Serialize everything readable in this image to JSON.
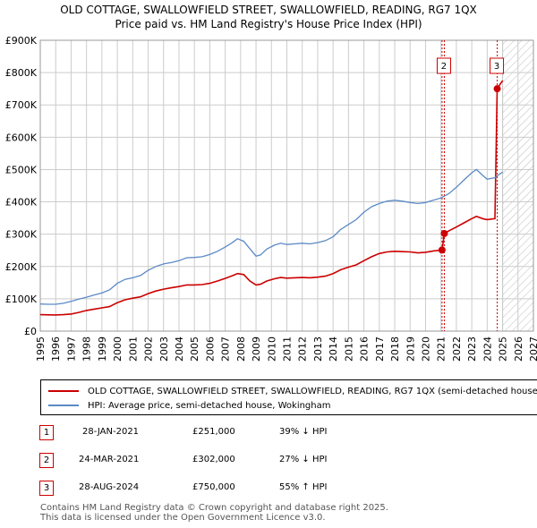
{
  "title_line1": "OLD COTTAGE, SWALLOWFIELD STREET, SWALLOWFIELD, READING, RG7 1QX",
  "title_line2": "Price paid vs. HM Land Registry's House Price Index (HPI)",
  "colors": {
    "property": "#cc0000",
    "hpi": "#5b8ac6",
    "grid": "#cccccc",
    "future_shade": "#dddddd",
    "annotation": "#cc0000"
  },
  "chart_data": {
    "type": "line",
    "title": "OLD COTTAGE, SWALLOWFIELD STREET, SWALLOWFIELD, READING, RG7 1QX",
    "subtitle": "Price paid vs. HM Land Registry's House Price Index (HPI)",
    "xlabel": "",
    "ylabel": "",
    "xlim": [
      1995,
      2027
    ],
    "ylim": [
      0,
      900000
    ],
    "x_ticks": [
      "1995",
      "1996",
      "1997",
      "1998",
      "1999",
      "2000",
      "2001",
      "2002",
      "2003",
      "2004",
      "2005",
      "2006",
      "2007",
      "2008",
      "2009",
      "2010",
      "2011",
      "2012",
      "2013",
      "2014",
      "2015",
      "2016",
      "2017",
      "2018",
      "2019",
      "2020",
      "2021",
      "2022",
      "2023",
      "2024",
      "2025",
      "2026",
      "2027"
    ],
    "y_ticks": [
      {
        "value": 0,
        "label": "£0"
      },
      {
        "value": 100000,
        "label": "£100K"
      },
      {
        "value": 200000,
        "label": "£200K"
      },
      {
        "value": 300000,
        "label": "£300K"
      },
      {
        "value": 400000,
        "label": "£400K"
      },
      {
        "value": 500000,
        "label": "£500K"
      },
      {
        "value": 600000,
        "label": "£600K"
      },
      {
        "value": 700000,
        "label": "£700K"
      },
      {
        "value": 800000,
        "label": "£800K"
      },
      {
        "value": 900000,
        "label": "£900K"
      }
    ],
    "grid": true,
    "future_shaded_from": 2025.0,
    "series": [
      {
        "name": "OLD COTTAGE, SWALLOWFIELD STREET, SWALLOWFIELD, READING, RG7 1QX (semi-detached house)",
        "role": "property",
        "points": [
          [
            1995.0,
            51000
          ],
          [
            1995.5,
            50500
          ],
          [
            1996.0,
            50000
          ],
          [
            1996.5,
            51000
          ],
          [
            1997.0,
            53000
          ],
          [
            1997.5,
            58000
          ],
          [
            1998.0,
            64000
          ],
          [
            1998.5,
            68000
          ],
          [
            1999.0,
            72000
          ],
          [
            1999.5,
            76000
          ],
          [
            2000.0,
            88000
          ],
          [
            2000.5,
            97000
          ],
          [
            2001.0,
            102000
          ],
          [
            2001.5,
            106000
          ],
          [
            2002.0,
            116000
          ],
          [
            2002.5,
            124000
          ],
          [
            2003.0,
            130000
          ],
          [
            2003.5,
            134000
          ],
          [
            2004.0,
            138000
          ],
          [
            2004.5,
            143000
          ],
          [
            2005.0,
            143000
          ],
          [
            2005.5,
            144000
          ],
          [
            2006.0,
            148000
          ],
          [
            2006.5,
            155000
          ],
          [
            2007.0,
            163000
          ],
          [
            2007.5,
            172000
          ],
          [
            2007.8,
            178000
          ],
          [
            2008.2,
            175000
          ],
          [
            2008.6,
            155000
          ],
          [
            2009.0,
            143000
          ],
          [
            2009.3,
            145000
          ],
          [
            2009.7,
            155000
          ],
          [
            2010.2,
            162000
          ],
          [
            2010.6,
            166000
          ],
          [
            2011.0,
            164000
          ],
          [
            2011.5,
            165000
          ],
          [
            2012.0,
            166000
          ],
          [
            2012.5,
            165000
          ],
          [
            2013.0,
            167000
          ],
          [
            2013.5,
            170000
          ],
          [
            2014.0,
            178000
          ],
          [
            2014.5,
            190000
          ],
          [
            2015.0,
            198000
          ],
          [
            2015.5,
            205000
          ],
          [
            2016.0,
            218000
          ],
          [
            2016.5,
            230000
          ],
          [
            2017.0,
            240000
          ],
          [
            2017.5,
            245000
          ],
          [
            2018.0,
            247000
          ],
          [
            2018.5,
            246000
          ],
          [
            2019.0,
            245000
          ],
          [
            2019.5,
            242000
          ],
          [
            2020.0,
            244000
          ],
          [
            2020.5,
            248000
          ],
          [
            2021.07,
            251000
          ],
          [
            2021.22,
            302000
          ],
          [
            2021.5,
            310000
          ],
          [
            2022.0,
            322000
          ],
          [
            2022.5,
            335000
          ],
          [
            2023.0,
            348000
          ],
          [
            2023.3,
            355000
          ],
          [
            2023.7,
            348000
          ],
          [
            2024.0,
            345000
          ],
          [
            2024.5,
            348000
          ],
          [
            2024.65,
            750000
          ],
          [
            2024.85,
            765000
          ],
          [
            2025.0,
            775000
          ]
        ]
      },
      {
        "name": "HPI: Average price, semi-detached house, Wokingham",
        "role": "hpi",
        "points": [
          [
            1995.0,
            84000
          ],
          [
            1995.5,
            83000
          ],
          [
            1996.0,
            83000
          ],
          [
            1996.5,
            86000
          ],
          [
            1997.0,
            92000
          ],
          [
            1997.5,
            99000
          ],
          [
            1998.0,
            105000
          ],
          [
            1998.5,
            112000
          ],
          [
            1999.0,
            118000
          ],
          [
            1999.5,
            128000
          ],
          [
            2000.0,
            148000
          ],
          [
            2000.5,
            160000
          ],
          [
            2001.0,
            165000
          ],
          [
            2001.5,
            172000
          ],
          [
            2002.0,
            188000
          ],
          [
            2002.5,
            200000
          ],
          [
            2003.0,
            208000
          ],
          [
            2003.5,
            212000
          ],
          [
            2004.0,
            218000
          ],
          [
            2004.5,
            227000
          ],
          [
            2005.0,
            228000
          ],
          [
            2005.5,
            230000
          ],
          [
            2006.0,
            237000
          ],
          [
            2006.5,
            247000
          ],
          [
            2007.0,
            260000
          ],
          [
            2007.5,
            275000
          ],
          [
            2007.8,
            286000
          ],
          [
            2008.2,
            278000
          ],
          [
            2008.6,
            255000
          ],
          [
            2009.0,
            232000
          ],
          [
            2009.3,
            236000
          ],
          [
            2009.7,
            254000
          ],
          [
            2010.2,
            266000
          ],
          [
            2010.6,
            272000
          ],
          [
            2011.0,
            268000
          ],
          [
            2011.5,
            270000
          ],
          [
            2012.0,
            272000
          ],
          [
            2012.5,
            270000
          ],
          [
            2013.0,
            274000
          ],
          [
            2013.5,
            280000
          ],
          [
            2014.0,
            292000
          ],
          [
            2014.5,
            315000
          ],
          [
            2015.0,
            330000
          ],
          [
            2015.5,
            345000
          ],
          [
            2016.0,
            368000
          ],
          [
            2016.5,
            385000
          ],
          [
            2017.0,
            395000
          ],
          [
            2017.5,
            402000
          ],
          [
            2018.0,
            405000
          ],
          [
            2018.5,
            402000
          ],
          [
            2019.0,
            398000
          ],
          [
            2019.5,
            395000
          ],
          [
            2020.0,
            398000
          ],
          [
            2020.5,
            405000
          ],
          [
            2021.0,
            412000
          ],
          [
            2021.5,
            425000
          ],
          [
            2022.0,
            445000
          ],
          [
            2022.5,
            468000
          ],
          [
            2023.0,
            490000
          ],
          [
            2023.3,
            500000
          ],
          [
            2023.7,
            482000
          ],
          [
            2024.0,
            470000
          ],
          [
            2024.5,
            475000
          ],
          [
            2024.7,
            482000
          ],
          [
            2025.0,
            492000
          ]
        ]
      }
    ],
    "annotations": [
      {
        "label": "1",
        "x": 2021.07,
        "value": 251000,
        "show_marker_box": false
      },
      {
        "label": "2",
        "x": 2021.22,
        "value": 302000,
        "show_marker_box": true
      },
      {
        "label": "3",
        "x": 2024.65,
        "value": 750000,
        "show_marker_box": true
      }
    ]
  },
  "legend": {
    "property_label": "OLD COTTAGE, SWALLOWFIELD STREET, SWALLOWFIELD, READING, RG7 1QX (semi-detached house)",
    "hpi_label": "HPI: Average price, semi-detached house, Wokingham"
  },
  "transactions": [
    {
      "num": "1",
      "date": "28-JAN-2021",
      "price": "£251,000",
      "hpi": "39% ↓ HPI"
    },
    {
      "num": "2",
      "date": "24-MAR-2021",
      "price": "£302,000",
      "hpi": "27% ↓ HPI"
    },
    {
      "num": "3",
      "date": "28-AUG-2024",
      "price": "£750,000",
      "hpi": "55% ↑ HPI"
    }
  ],
  "footer": {
    "line1": "Contains HM Land Registry data © Crown copyright and database right 2025.",
    "line2": "This data is licensed under the Open Government Licence v3.0."
  }
}
